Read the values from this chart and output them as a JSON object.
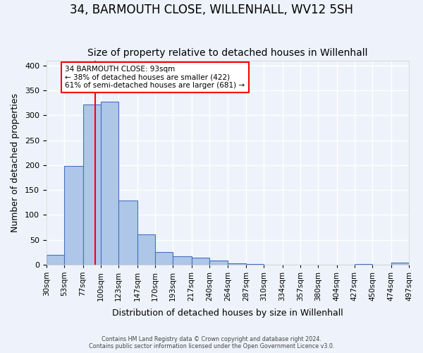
{
  "title": "34, BARMOUTH CLOSE, WILLENHALL, WV12 5SH",
  "subtitle": "Size of property relative to detached houses in Willenhall",
  "xlabel": "Distribution of detached houses by size in Willenhall",
  "ylabel": "Number of detached properties",
  "bin_edges": [
    30,
    53,
    77,
    100,
    123,
    147,
    170,
    193,
    217,
    240,
    264,
    287,
    310,
    334,
    357,
    380,
    404,
    427,
    450,
    474,
    497
  ],
  "bin_labels": [
    "30sqm",
    "53sqm",
    "77sqm",
    "100sqm",
    "123sqm",
    "147sqm",
    "170sqm",
    "193sqm",
    "217sqm",
    "240sqm",
    "264sqm",
    "287sqm",
    "310sqm",
    "334sqm",
    "357sqm",
    "380sqm",
    "404sqm",
    "427sqm",
    "450sqm",
    "474sqm",
    "497sqm"
  ],
  "bar_heights": [
    19,
    199,
    322,
    328,
    129,
    61,
    25,
    16,
    14,
    8,
    2,
    1,
    0,
    0,
    0,
    0,
    0,
    1,
    0,
    4
  ],
  "bar_color": "#aec6e8",
  "bar_edge_color": "#4472c4",
  "reference_line_x": 93,
  "reference_line_color": "red",
  "annotation_text": "34 BARMOUTH CLOSE: 93sqm\n← 38% of detached houses are smaller (422)\n61% of semi-detached houses are larger (681) →",
  "annotation_box_color": "white",
  "annotation_box_edge_color": "red",
  "ylim": [
    0,
    410
  ],
  "footer_line1": "Contains HM Land Registry data © Crown copyright and database right 2024.",
  "footer_line2": "Contains public sector information licensed under the Open Government Licence v3.0.",
  "background_color": "#eef3fb",
  "grid_color": "white",
  "title_fontsize": 12,
  "subtitle_fontsize": 10,
  "axis_label_fontsize": 9,
  "tick_fontsize": 7.5
}
